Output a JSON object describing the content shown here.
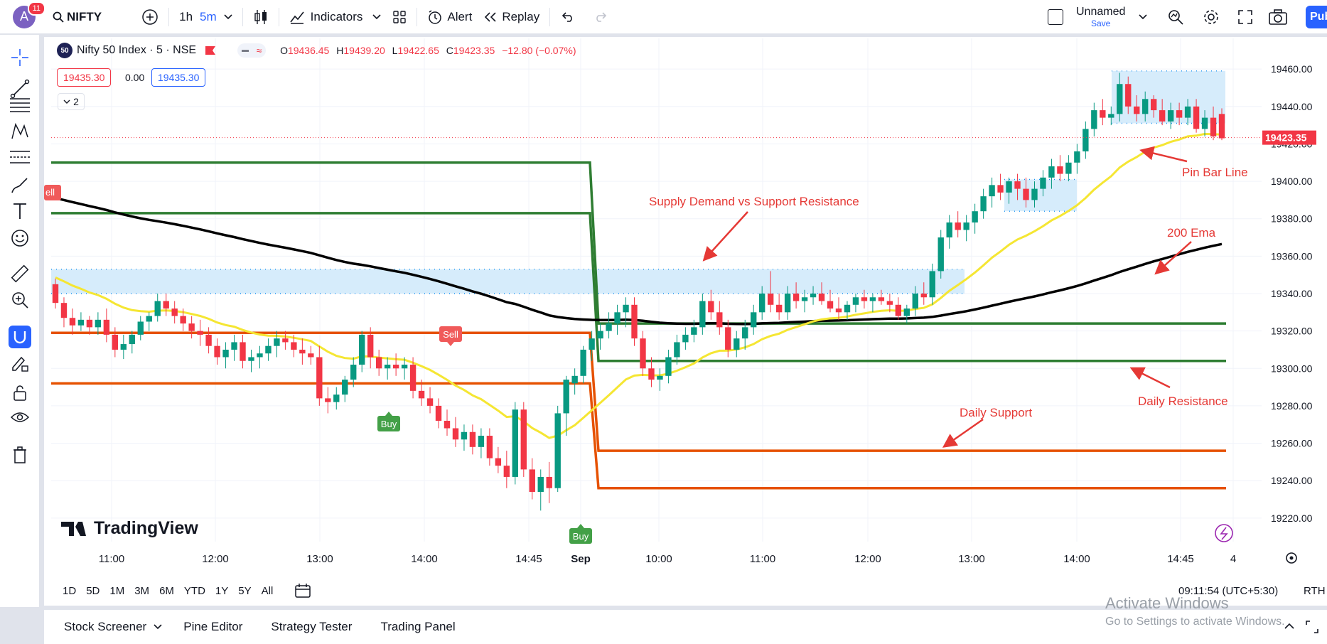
{
  "topbar": {
    "avatar_letter": "A",
    "notifications": "11",
    "symbol": "NIFTY",
    "interval_1h": "1h",
    "interval_5m": "5m",
    "indicators": "Indicators",
    "alert": "Alert",
    "replay": "Replay",
    "layout_name": "Unnamed",
    "save": "Save",
    "publish": "Pub"
  },
  "legend": {
    "title": "Nifty 50 Index · 5 · NSE",
    "badge": "50",
    "o_label": "O",
    "o": "19436.45",
    "h_label": "H",
    "h": "19439.20",
    "l_label": "L",
    "l": "19422.65",
    "c_label": "C",
    "c": "19423.35",
    "change": "−12.80 (−0.07%)",
    "sell_price": "19435.30",
    "spread": "0.00",
    "buy_price": "19435.30",
    "collapse": "2"
  },
  "annotations": {
    "supply_demand": "Supply Demand vs Support Resistance",
    "pin_bar": "Pin Bar Line",
    "ema200": "200 Ema",
    "daily_resistance": "Daily Resistance",
    "daily_support": "Daily Support",
    "sell": "Sell",
    "buy": "Buy",
    "sell_edge": "ell"
  },
  "brand": "TradingView",
  "price_axis": [
    "19460.00",
    "19440.00",
    "19420.00",
    "19400.00",
    "19380.00",
    "19360.00",
    "19340.00",
    "19320.00",
    "19300.00",
    "19280.00",
    "19260.00",
    "19240.00",
    "19220.00"
  ],
  "last_price": "19423.35",
  "time_axis": [
    "11:00",
    "12:00",
    "13:00",
    "14:00",
    "14:45",
    "Sep",
    "10:00",
    "11:00",
    "12:00",
    "13:00",
    "14:00",
    "14:45",
    "4"
  ],
  "range_buttons": [
    "1D",
    "5D",
    "1M",
    "3M",
    "6M",
    "YTD",
    "1Y",
    "5Y",
    "All"
  ],
  "clock": "09:11:54 (UTC+5:30)",
  "session": "RTH",
  "panels": {
    "screener": "Stock Screener",
    "pine": "Pine Editor",
    "tester": "Strategy Tester",
    "trading": "Trading Panel"
  },
  "windows_watermark": {
    "line1": "Activate Windows",
    "line2": "Go to Settings to activate Windows."
  },
  "colors": {
    "up": "#089981",
    "down": "#f23645",
    "ema200": "#000000",
    "ema_fast": "#f5e633",
    "resistance": "#2e7d32",
    "support": "#e65100",
    "zone": "#d6ecfb"
  },
  "chart_data": {
    "type": "candlestick",
    "ylim": [
      19215,
      19465
    ],
    "sessions": [
      {
        "ohlc": [
          [
            19345,
            19348,
            19332,
            19335
          ],
          [
            19335,
            19338,
            19322,
            19327
          ],
          [
            19327,
            19332,
            19318,
            19323
          ],
          [
            19323,
            19330,
            19320,
            19326
          ],
          [
            19326,
            19328,
            19318,
            19322
          ],
          [
            19322,
            19330,
            19318,
            19326
          ],
          [
            19326,
            19332,
            19314,
            19318
          ],
          [
            19318,
            19322,
            19306,
            19310
          ],
          [
            19310,
            19318,
            19305,
            19313
          ],
          [
            19313,
            19320,
            19308,
            19318
          ],
          [
            19318,
            19328,
            19315,
            19325
          ],
          [
            19325,
            19330,
            19320,
            19328
          ],
          [
            19328,
            19340,
            19325,
            19336
          ],
          [
            19336,
            19340,
            19328,
            19332
          ],
          [
            19332,
            19336,
            19324,
            19328
          ],
          [
            19328,
            19332,
            19320,
            19324
          ],
          [
            19324,
            19328,
            19316,
            19320
          ],
          [
            19320,
            19326,
            19312,
            19318
          ],
          [
            19318,
            19322,
            19308,
            19312
          ],
          [
            19312,
            19316,
            19302,
            19306
          ],
          [
            19306,
            19314,
            19300,
            19310
          ],
          [
            19310,
            19318,
            19304,
            19314
          ],
          [
            19314,
            19318,
            19300,
            19304
          ],
          [
            19304,
            19310,
            19298,
            19306
          ],
          [
            19306,
            19312,
            19300,
            19308
          ],
          [
            19308,
            19316,
            19304,
            19312
          ],
          [
            19312,
            19320,
            19306,
            19316
          ],
          [
            19316,
            19320,
            19310,
            19314
          ],
          [
            19314,
            19318,
            19306,
            19310
          ],
          [
            19310,
            19316,
            19302,
            19308
          ],
          [
            19308,
            19312,
            19302,
            19306
          ],
          [
            19306,
            19312,
            19280,
            19284
          ],
          [
            19284,
            19290,
            19276,
            19282
          ],
          [
            19282,
            19290,
            19278,
            19286
          ],
          [
            19286,
            19296,
            19282,
            19294
          ],
          [
            19294,
            19306,
            19290,
            19302
          ],
          [
            19302,
            19320,
            19298,
            19318
          ],
          [
            19318,
            19322,
            19300,
            19306
          ],
          [
            19306,
            19310,
            19296,
            19300
          ],
          [
            19300,
            19306,
            19294,
            19302
          ],
          [
            19302,
            19308,
            19296,
            19300
          ],
          [
            19300,
            19306,
            19294,
            19302
          ],
          [
            19302,
            19306,
            19284,
            19288
          ],
          [
            19288,
            19294,
            19280,
            19284
          ],
          [
            19284,
            19290,
            19276,
            19280
          ],
          [
            19280,
            19284,
            19268,
            19272
          ],
          [
            19272,
            19278,
            19264,
            19268
          ],
          [
            19268,
            19274,
            19258,
            19262
          ],
          [
            19262,
            19270,
            19256,
            19266
          ],
          [
            19266,
            19270,
            19254,
            19258
          ],
          [
            19258,
            19268,
            19252,
            19264
          ],
          [
            19264,
            19268,
            19248,
            19252
          ],
          [
            19252,
            19258,
            19244,
            19248
          ],
          [
            19248,
            19256,
            19236,
            19242
          ],
          [
            19242,
            19282,
            19238,
            19278
          ],
          [
            19278,
            19282,
            19242,
            19246
          ],
          [
            19246,
            19252,
            19230,
            19234
          ],
          [
            19234,
            19246,
            19224,
            19242
          ],
          [
            19242,
            19250,
            19228,
            19236
          ],
          [
            19236,
            19280,
            19234,
            19276
          ],
          [
            19276,
            19296,
            19264,
            19294
          ]
        ]
      },
      {
        "ohlc": [
          [
            19292,
            19300,
            19286,
            19296
          ],
          [
            19296,
            19312,
            19292,
            19310
          ],
          [
            19310,
            19320,
            19304,
            19316
          ],
          [
            19316,
            19324,
            19310,
            19320
          ],
          [
            19320,
            19330,
            19316,
            19324
          ],
          [
            19324,
            19334,
            19318,
            19330
          ],
          [
            19330,
            19338,
            19322,
            19334
          ],
          [
            19334,
            19338,
            19312,
            19316
          ],
          [
            19316,
            19320,
            19296,
            19300
          ],
          [
            19300,
            19306,
            19290,
            19294
          ],
          [
            19294,
            19300,
            19288,
            19296
          ],
          [
            19296,
            19310,
            19292,
            19306
          ],
          [
            19306,
            19318,
            19302,
            19314
          ],
          [
            19314,
            19322,
            19310,
            19318
          ],
          [
            19318,
            19326,
            19314,
            19322
          ],
          [
            19322,
            19340,
            19318,
            19336
          ],
          [
            19336,
            19342,
            19326,
            19330
          ],
          [
            19330,
            19336,
            19318,
            19322
          ],
          [
            19322,
            19326,
            19306,
            19310
          ],
          [
            19310,
            19320,
            19306,
            19316
          ],
          [
            19316,
            19326,
            19310,
            19322
          ],
          [
            19322,
            19334,
            19318,
            19330
          ],
          [
            19330,
            19344,
            19326,
            19340
          ],
          [
            19340,
            19352,
            19330,
            19334
          ],
          [
            19334,
            19340,
            19326,
            19330
          ],
          [
            19330,
            19344,
            19326,
            19340
          ],
          [
            19340,
            19346,
            19332,
            19336
          ],
          [
            19336,
            19342,
            19330,
            19338
          ],
          [
            19338,
            19344,
            19334,
            19340
          ],
          [
            19340,
            19346,
            19334,
            19336
          ],
          [
            19336,
            19342,
            19330,
            19332
          ],
          [
            19332,
            19338,
            19326,
            19330
          ],
          [
            19330,
            19336,
            19326,
            19334
          ],
          [
            19334,
            19340,
            19330,
            19338
          ],
          [
            19338,
            19342,
            19332,
            19336
          ],
          [
            19336,
            19340,
            19330,
            19338
          ],
          [
            19338,
            19342,
            19334,
            19336
          ],
          [
            19336,
            19340,
            19330,
            19334
          ],
          [
            19334,
            19338,
            19326,
            19328
          ],
          [
            19328,
            19334,
            19324,
            19332
          ],
          [
            19332,
            19344,
            19328,
            19340
          ],
          [
            19340,
            19346,
            19334,
            19338
          ],
          [
            19338,
            19356,
            19334,
            19352
          ],
          [
            19352,
            19374,
            19348,
            19370
          ],
          [
            19370,
            19382,
            19364,
            19378
          ],
          [
            19378,
            19384,
            19370,
            19374
          ],
          [
            19374,
            19382,
            19368,
            19378
          ],
          [
            19378,
            19388,
            19372,
            19384
          ],
          [
            19384,
            19396,
            19380,
            19392
          ],
          [
            19392,
            19402,
            19386,
            19398
          ],
          [
            19398,
            19404,
            19390,
            19394
          ],
          [
            19394,
            19402,
            19388,
            19400
          ],
          [
            19400,
            19404,
            19390,
            19396
          ],
          [
            19396,
            19402,
            19386,
            19390
          ],
          [
            19390,
            19400,
            19386,
            19396
          ],
          [
            19396,
            19406,
            19392,
            19402
          ],
          [
            19402,
            19412,
            19396,
            19408
          ],
          [
            19408,
            19414,
            19400,
            19404
          ],
          [
            19404,
            19414,
            19400,
            19410
          ],
          [
            19410,
            19420,
            19404,
            19416
          ],
          [
            19416,
            19432,
            19412,
            19428
          ],
          [
            19428,
            19442,
            19424,
            19438
          ],
          [
            19438,
            19444,
            19430,
            19434
          ],
          [
            19434,
            19440,
            19430,
            19436
          ],
          [
            19436,
            19458,
            19432,
            19452
          ],
          [
            19452,
            19456,
            19436,
            19440
          ],
          [
            19440,
            19446,
            19432,
            19436
          ],
          [
            19436,
            19448,
            19432,
            19444
          ],
          [
            19444,
            19446,
            19434,
            19438
          ],
          [
            19438,
            19444,
            19430,
            19432
          ],
          [
            19432,
            19442,
            19428,
            19438
          ],
          [
            19438,
            19442,
            19430,
            19434
          ],
          [
            19434,
            19444,
            19430,
            19440
          ],
          [
            19440,
            19444,
            19426,
            19428
          ],
          [
            19428,
            19438,
            19424,
            19434
          ],
          [
            19434,
            19440,
            19422,
            19424
          ],
          [
            19436,
            19439,
            19422,
            19423
          ]
        ]
      }
    ],
    "levels": {
      "resistance_day1": [
        19410,
        19383
      ],
      "support_day1": [
        19319,
        19292
      ],
      "resistance_day2": [
        19324,
        19304
      ],
      "support_day2": [
        19256,
        19236
      ]
    },
    "zones": [
      {
        "low": 19340,
        "high": 19353
      },
      {
        "low": 19384,
        "high": 19401
      },
      {
        "low": 19431,
        "high": 19459
      }
    ]
  }
}
